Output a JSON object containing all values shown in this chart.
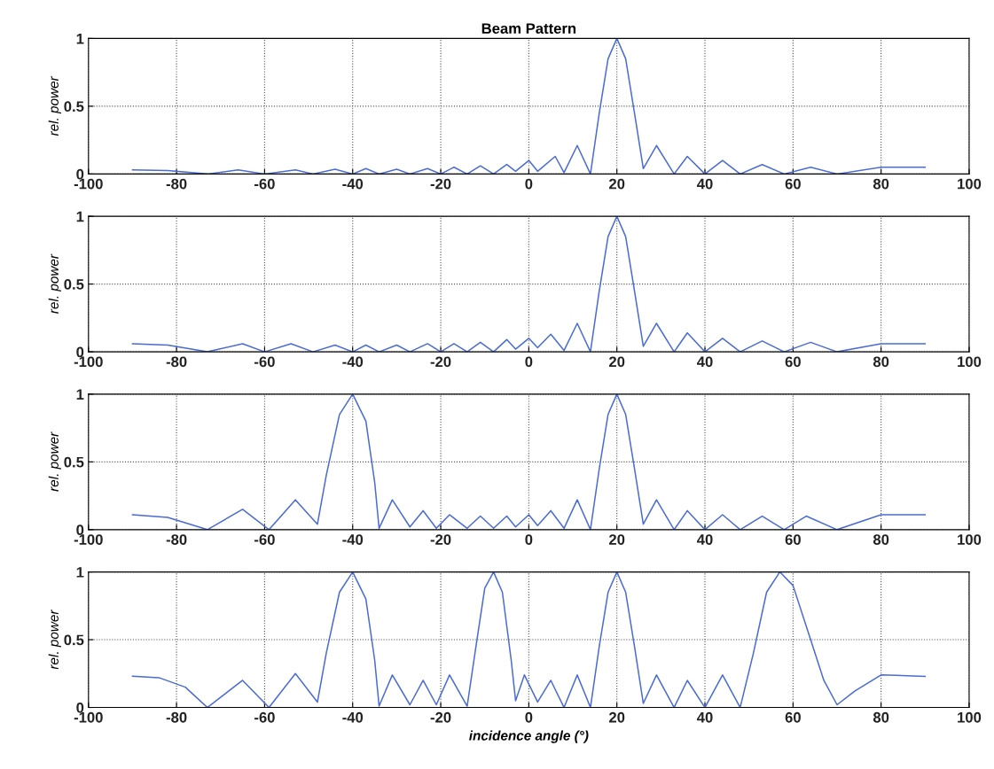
{
  "chart_data": [
    {
      "type": "line",
      "title": "Beam Pattern",
      "ylabel": "rel. power",
      "xlim": [
        -100,
        100
      ],
      "xticks": [
        -100,
        -80,
        -60,
        -40,
        -20,
        0,
        20,
        40,
        60,
        80,
        100
      ],
      "ylim": [
        0,
        1
      ],
      "yticks": [
        0,
        0.5,
        1
      ],
      "grid": true,
      "series": [
        {
          "color": "#4a6cd4",
          "x": [
            -90,
            -82,
            -73,
            -66,
            -60,
            -53,
            -49,
            -44,
            -40,
            -37,
            -34,
            -30,
            -27,
            -23,
            -20,
            -17,
            -14,
            -11,
            -8,
            -5,
            -3,
            0,
            2,
            6,
            8,
            11,
            14,
            16,
            18,
            20,
            22,
            24,
            26,
            29,
            33,
            36,
            40,
            44,
            48,
            53,
            58,
            64,
            70,
            80,
            90
          ],
          "values": [
            0.03,
            0.025,
            0,
            0.03,
            0,
            0.03,
            0,
            0.035,
            0,
            0.04,
            0,
            0.035,
            0,
            0.04,
            0,
            0.05,
            0,
            0.06,
            0,
            0.07,
            0.02,
            0.1,
            0.02,
            0.13,
            0.01,
            0.21,
            0,
            0.45,
            0.85,
            1,
            0.85,
            0.45,
            0.04,
            0.21,
            0,
            0.13,
            0,
            0.1,
            0,
            0.07,
            0,
            0.05,
            0,
            0.05,
            0.05
          ]
        }
      ]
    },
    {
      "type": "line",
      "ylabel": "rel. power",
      "xlim": [
        -100,
        100
      ],
      "xticks": [
        -100,
        -80,
        -60,
        -40,
        -20,
        0,
        20,
        40,
        60,
        80,
        100
      ],
      "ylim": [
        0,
        1
      ],
      "yticks": [
        0,
        0.5,
        1
      ],
      "grid": true,
      "series": [
        {
          "color": "#4a6cd4",
          "x": [
            -90,
            -82,
            -73,
            -65,
            -60,
            -54,
            -49,
            -44,
            -40,
            -37,
            -34,
            -30,
            -27,
            -23,
            -20,
            -17,
            -14,
            -11,
            -8,
            -5,
            -3,
            0,
            2,
            5,
            8,
            11,
            14,
            16,
            18,
            20,
            22,
            24,
            26,
            29,
            33,
            36,
            40,
            44,
            48,
            53,
            58,
            64,
            70,
            80,
            90
          ],
          "values": [
            0.06,
            0.05,
            0,
            0.06,
            0,
            0.06,
            0,
            0.05,
            0,
            0.05,
            0,
            0.05,
            0,
            0.06,
            0,
            0.06,
            0,
            0.07,
            0,
            0.09,
            0.02,
            0.1,
            0.03,
            0.13,
            0.01,
            0.21,
            0,
            0.45,
            0.85,
            1,
            0.85,
            0.45,
            0.04,
            0.21,
            0,
            0.14,
            0,
            0.1,
            0,
            0.08,
            0,
            0.07,
            0,
            0.06,
            0.06
          ]
        }
      ]
    },
    {
      "type": "line",
      "ylabel": "rel. power",
      "xlim": [
        -100,
        100
      ],
      "xticks": [
        -100,
        -80,
        -60,
        -40,
        -20,
        0,
        20,
        40,
        60,
        80,
        100
      ],
      "ylim": [
        0,
        1
      ],
      "yticks": [
        0,
        0.5,
        1
      ],
      "grid": true,
      "series": [
        {
          "color": "#4a6cd4",
          "x": [
            -90,
            -82,
            -73,
            -65,
            -59,
            -53,
            -48,
            -46,
            -43,
            -40,
            -37,
            -35,
            -34,
            -31,
            -27,
            -24,
            -21,
            -18,
            -14,
            -11,
            -8,
            -5,
            -3,
            0,
            2,
            5,
            8,
            11,
            14,
            16,
            18,
            20,
            22,
            24,
            26,
            29,
            33,
            36,
            40,
            44,
            48,
            53,
            58,
            63,
            70,
            80,
            90
          ],
          "values": [
            0.11,
            0.09,
            0,
            0.15,
            0,
            0.22,
            0.04,
            0.4,
            0.85,
            1,
            0.8,
            0.35,
            0.01,
            0.22,
            0.02,
            0.14,
            0.01,
            0.11,
            0.01,
            0.1,
            0.01,
            0.1,
            0.02,
            0.11,
            0.03,
            0.14,
            0.01,
            0.22,
            0,
            0.45,
            0.85,
            1,
            0.85,
            0.45,
            0.04,
            0.22,
            0,
            0.14,
            0,
            0.11,
            0,
            0.1,
            0,
            0.1,
            0,
            0.11,
            0.11
          ]
        }
      ]
    },
    {
      "type": "line",
      "ylabel": "rel. power",
      "xlabel": "incidence angle (°)",
      "xlim": [
        -100,
        100
      ],
      "xticks": [
        -100,
        -80,
        -60,
        -40,
        -20,
        0,
        20,
        40,
        60,
        80,
        100
      ],
      "ylim": [
        0,
        1
      ],
      "yticks": [
        0,
        0.5,
        1
      ],
      "grid": true,
      "series": [
        {
          "color": "#4a6cd4",
          "x": [
            -90,
            -84,
            -78,
            -73,
            -65,
            -59,
            -53,
            -48,
            -46,
            -43,
            -40,
            -37,
            -35,
            -34,
            -31,
            -27,
            -24,
            -21,
            -18,
            -14,
            -12,
            -10,
            -8,
            -6,
            -4,
            -3,
            -1,
            2,
            5,
            8,
            11,
            14,
            16,
            18,
            20,
            22,
            24,
            26,
            29,
            33,
            36,
            40,
            44,
            48,
            51,
            54,
            57,
            60,
            64,
            67,
            70,
            74,
            80,
            90
          ],
          "values": [
            0.23,
            0.22,
            0.15,
            0,
            0.2,
            0,
            0.25,
            0.04,
            0.4,
            0.85,
            1,
            0.8,
            0.35,
            0.01,
            0.24,
            0.02,
            0.2,
            0.02,
            0.24,
            0.01,
            0.45,
            0.88,
            1,
            0.85,
            0.35,
            0.05,
            0.24,
            0.04,
            0.2,
            0,
            0.24,
            0,
            0.45,
            0.85,
            1,
            0.85,
            0.45,
            0.03,
            0.24,
            0,
            0.2,
            0,
            0.24,
            0,
            0.4,
            0.85,
            1,
            0.9,
            0.5,
            0.2,
            0.02,
            0.12,
            0.24,
            0.23
          ]
        }
      ]
    }
  ]
}
